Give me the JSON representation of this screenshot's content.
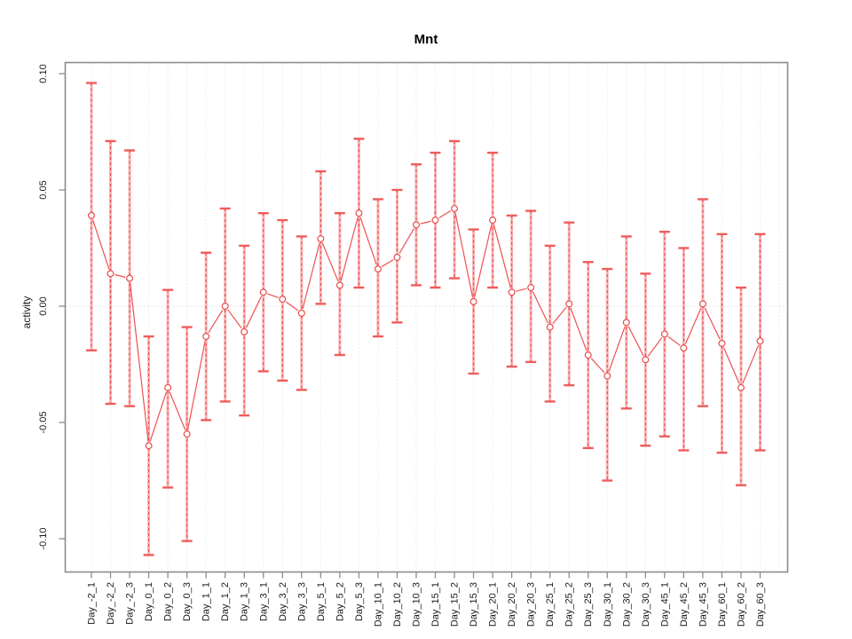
{
  "chart_data": {
    "type": "line",
    "subtype": "points-with-error-bars",
    "title": "Mnt",
    "xlabel": "",
    "ylabel": "activity",
    "ylim": [
      -0.115,
      0.105
    ],
    "yticks": [
      0.1,
      0.05,
      0.0,
      -0.05,
      -0.1
    ],
    "ytick_labels": [
      "0.10",
      "0.05",
      "0.00",
      "-0.05",
      "-0.10"
    ],
    "grid": "vertical dotted gridlines at each category; dotted horizontal line at y=0",
    "legend": "none",
    "extra_right_gridline": true,
    "categories": [
      "Day_-2_1",
      "Day_-2_2",
      "Day_-2_3",
      "Day_0_1",
      "Day_0_2",
      "Day_0_3",
      "Day_1_1",
      "Day_1_2",
      "Day_1_3",
      "Day_3_1",
      "Day_3_2",
      "Day_3_3",
      "Day_5_1",
      "Day_5_2",
      "Day_5_3",
      "Day_10_1",
      "Day_10_2",
      "Day_10_3",
      "Day_15_1",
      "Day_15_2",
      "Day_15_3",
      "Day_20_1",
      "Day_20_2",
      "Day_20_3",
      "Day_25_1",
      "Day_25_2",
      "Day_25_3",
      "Day_30_1",
      "Day_30_2",
      "Day_30_3",
      "Day_45_1",
      "Day_45_2",
      "Day_45_3",
      "Day_60_1",
      "Day_60_2",
      "Day_60_3"
    ],
    "series": [
      {
        "name": "activity",
        "values": [
          0.039,
          0.014,
          0.012,
          -0.06,
          -0.035,
          -0.055,
          -0.013,
          0.0,
          -0.011,
          0.006,
          0.003,
          -0.003,
          0.029,
          0.009,
          0.04,
          0.016,
          0.021,
          0.035,
          0.037,
          0.042,
          0.002,
          0.037,
          0.006,
          0.008,
          -0.009,
          0.001,
          -0.021,
          -0.03,
          -0.007,
          -0.023,
          -0.012,
          -0.018,
          0.001,
          -0.016,
          -0.035,
          -0.015
        ],
        "ci_low": [
          -0.019,
          -0.042,
          -0.043,
          -0.107,
          -0.078,
          -0.101,
          -0.049,
          -0.041,
          -0.047,
          -0.028,
          -0.032,
          -0.036,
          0.001,
          -0.021,
          0.008,
          -0.013,
          -0.007,
          0.009,
          0.008,
          0.012,
          -0.029,
          0.008,
          -0.026,
          -0.024,
          -0.041,
          -0.034,
          -0.061,
          -0.075,
          -0.044,
          -0.06,
          -0.056,
          -0.062,
          -0.043,
          -0.063,
          -0.077,
          -0.062
        ],
        "ci_high": [
          0.096,
          0.071,
          0.067,
          -0.013,
          0.007,
          -0.009,
          0.023,
          0.042,
          0.026,
          0.04,
          0.037,
          0.03,
          0.058,
          0.04,
          0.072,
          0.046,
          0.05,
          0.061,
          0.066,
          0.071,
          0.033,
          0.066,
          0.039,
          0.041,
          0.026,
          0.036,
          0.019,
          0.016,
          0.03,
          0.014,
          0.032,
          0.025,
          0.046,
          0.031,
          0.008,
          0.031
        ]
      }
    ],
    "colors": {
      "point_stroke": "#e84b4b",
      "point_fill": "#ffffff",
      "segment_line": "#ef5050",
      "errorbar_dashed": "#e84b4b",
      "errorbar_band": "#f79a9a",
      "errorbar_cap": "#ef5c5c",
      "gridline": "#dcdcdc",
      "zero_line": "#cfcfcf",
      "axis_box": "#8c8c8c",
      "text": "#1a1a1a"
    }
  }
}
